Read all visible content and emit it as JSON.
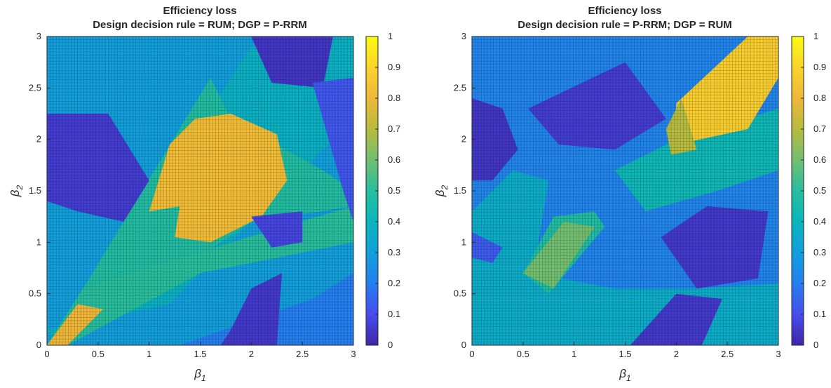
{
  "chart_data": [
    {
      "type": "heatmap",
      "title": "Efficiency loss",
      "subtitle": "Design decision rule = RUM; DGP = P-RRM",
      "xlabel": "β1",
      "ylabel": "β2",
      "xlim": [
        0,
        3
      ],
      "ylim": [
        0,
        3
      ],
      "xticks": [
        "0",
        "0.5",
        "1",
        "1.5",
        "2",
        "2.5",
        "3"
      ],
      "yticks": [
        "0",
        "0.5",
        "1",
        "1.5",
        "2",
        "2.5",
        "3"
      ],
      "grid": true,
      "colormap": "parula",
      "colorbar": {
        "range": [
          0,
          1
        ],
        "ticks": [
          "0",
          "0.1",
          "0.2",
          "0.3",
          "0.4",
          "0.5",
          "0.6",
          "0.7",
          "0.8",
          "0.9",
          "1"
        ]
      },
      "background_level": 0.3,
      "regions": [
        {
          "level": 0.38,
          "polygon": [
            [
              0.1,
              0.0
            ],
            [
              2.0,
              2.9
            ],
            [
              3.0,
              3.0
            ],
            [
              3.0,
              2.2
            ],
            [
              1.2,
              0.4
            ],
            [
              0.0,
              0.15
            ]
          ]
        },
        {
          "level": 0.2,
          "polygon": [
            [
              0.0,
              0.0
            ],
            [
              1.3,
              0.0
            ],
            [
              2.6,
              0.45
            ],
            [
              3.0,
              0.7
            ],
            [
              3.0,
              0.0
            ]
          ]
        },
        {
          "level": 0.48,
          "polygon": [
            [
              0.02,
              0.0
            ],
            [
              1.6,
              2.6
            ],
            [
              1.8,
              2.2
            ],
            [
              2.7,
              1.7
            ],
            [
              3.0,
              1.5
            ],
            [
              3.0,
              1.35
            ],
            [
              2.0,
              1.2
            ],
            [
              0.2,
              0.0
            ]
          ]
        },
        {
          "level": 0.5,
          "polygon": [
            [
              0.0,
              0.0
            ],
            [
              0.35,
              0.55
            ],
            [
              2.3,
              1.15
            ],
            [
              3.0,
              1.35
            ],
            [
              3.0,
              1.0
            ],
            [
              1.5,
              0.7
            ],
            [
              0.2,
              0.0
            ]
          ]
        },
        {
          "level": 0.82,
          "polygon": [
            [
              1.0,
              1.3
            ],
            [
              1.2,
              1.95
            ],
            [
              1.45,
              2.2
            ],
            [
              1.8,
              2.25
            ],
            [
              2.25,
              2.05
            ],
            [
              2.35,
              1.6
            ],
            [
              2.1,
              1.25
            ],
            [
              1.6,
              1.0
            ],
            [
              1.25,
              1.05
            ],
            [
              1.3,
              1.35
            ]
          ]
        },
        {
          "level": 0.8,
          "polygon": [
            [
              0.0,
              0.0
            ],
            [
              0.3,
              0.4
            ],
            [
              0.55,
              0.35
            ],
            [
              0.2,
              0.0
            ]
          ]
        },
        {
          "level": 0.06,
          "polygon": [
            [
              0.0,
              2.25
            ],
            [
              0.6,
              2.25
            ],
            [
              1.0,
              1.6
            ],
            [
              0.75,
              1.2
            ],
            [
              0.3,
              1.3
            ],
            [
              0.0,
              1.4
            ]
          ]
        },
        {
          "level": 0.05,
          "polygon": [
            [
              1.7,
              0.0
            ],
            [
              2.25,
              0.0
            ],
            [
              2.3,
              0.7
            ],
            [
              2.0,
              0.55
            ],
            [
              1.8,
              0.15
            ]
          ]
        },
        {
          "level": 0.04,
          "polygon": [
            [
              2.0,
              3.0
            ],
            [
              2.8,
              3.0
            ],
            [
              2.7,
              2.5
            ],
            [
              2.2,
              2.55
            ]
          ]
        },
        {
          "level": 0.12,
          "polygon": [
            [
              2.6,
              2.55
            ],
            [
              3.0,
              2.6
            ],
            [
              3.0,
              1.2
            ],
            [
              2.9,
              1.5
            ]
          ]
        },
        {
          "level": 0.08,
          "polygon": [
            [
              2.0,
              1.25
            ],
            [
              2.5,
              1.3
            ],
            [
              2.5,
              1.0
            ],
            [
              2.2,
              0.95
            ]
          ]
        }
      ]
    },
    {
      "type": "heatmap",
      "title": "Efficiency loss",
      "subtitle": "Design decision rule = P-RRM; DGP = RUM",
      "xlabel": "β1",
      "ylabel": "β2",
      "xlim": [
        0,
        3
      ],
      "ylim": [
        0,
        3
      ],
      "xticks": [
        "0",
        "0.5",
        "1",
        "1.5",
        "2",
        "2.5",
        "3"
      ],
      "yticks": [
        "0",
        "0.5",
        "1",
        "1.5",
        "2",
        "2.5",
        "3"
      ],
      "grid": true,
      "colormap": "parula",
      "colorbar": {
        "range": [
          0,
          1
        ],
        "ticks": [
          "0",
          "0.1",
          "0.2",
          "0.3",
          "0.4",
          "0.5",
          "0.6",
          "0.7",
          "0.8",
          "0.9",
          "1"
        ]
      },
      "background_level": 0.22,
      "regions": [
        {
          "level": 0.36,
          "polygon": [
            [
              0.0,
              0.0
            ],
            [
              0.0,
              1.3
            ],
            [
              0.4,
              1.7
            ],
            [
              0.75,
              1.6
            ],
            [
              0.6,
              0.7
            ],
            [
              1.4,
              0.55
            ],
            [
              2.2,
              0.55
            ],
            [
              3.0,
              0.6
            ],
            [
              3.0,
              0.0
            ]
          ]
        },
        {
          "level": 0.42,
          "polygon": [
            [
              1.4,
              1.7
            ],
            [
              2.0,
              2.0
            ],
            [
              3.0,
              2.3
            ],
            [
              3.0,
              1.7
            ],
            [
              2.4,
              1.5
            ],
            [
              1.7,
              1.3
            ]
          ]
        },
        {
          "level": 0.48,
          "polygon": [
            [
              0.5,
              0.7
            ],
            [
              0.75,
              0.5
            ],
            [
              1.3,
              1.15
            ],
            [
              1.2,
              1.3
            ],
            [
              0.8,
              1.25
            ]
          ]
        },
        {
          "level": 0.6,
          "polygon": [
            [
              0.5,
              0.7
            ],
            [
              0.8,
              0.55
            ],
            [
              1.2,
              1.15
            ],
            [
              0.9,
              1.2
            ]
          ]
        },
        {
          "level": 0.88,
          "polygon": [
            [
              2.0,
              2.35
            ],
            [
              2.7,
              3.0
            ],
            [
              3.0,
              3.0
            ],
            [
              3.0,
              2.6
            ],
            [
              2.7,
              2.1
            ],
            [
              2.0,
              1.95
            ]
          ]
        },
        {
          "level": 0.7,
          "polygon": [
            [
              1.9,
              2.1
            ],
            [
              2.05,
              2.4
            ],
            [
              2.2,
              1.9
            ],
            [
              1.95,
              1.85
            ]
          ]
        },
        {
          "level": 0.04,
          "polygon": [
            [
              0.0,
              1.6
            ],
            [
              0.0,
              2.4
            ],
            [
              0.3,
              2.3
            ],
            [
              0.45,
              1.9
            ],
            [
              0.2,
              1.6
            ]
          ]
        },
        {
          "level": 0.06,
          "polygon": [
            [
              0.55,
              2.3
            ],
            [
              1.5,
              2.75
            ],
            [
              1.9,
              2.2
            ],
            [
              1.4,
              1.9
            ],
            [
              0.85,
              1.95
            ]
          ]
        },
        {
          "level": 0.05,
          "polygon": [
            [
              1.85,
              1.05
            ],
            [
              2.3,
              1.35
            ],
            [
              2.9,
              1.3
            ],
            [
              2.8,
              0.65
            ],
            [
              2.2,
              0.55
            ]
          ]
        },
        {
          "level": 0.05,
          "polygon": [
            [
              1.55,
              0.0
            ],
            [
              2.25,
              0.0
            ],
            [
              2.45,
              0.45
            ],
            [
              2.0,
              0.5
            ]
          ]
        },
        {
          "level": 0.13,
          "polygon": [
            [
              0.0,
              0.85
            ],
            [
              0.0,
              1.1
            ],
            [
              0.3,
              0.95
            ],
            [
              0.2,
              0.8
            ]
          ]
        }
      ]
    }
  ]
}
